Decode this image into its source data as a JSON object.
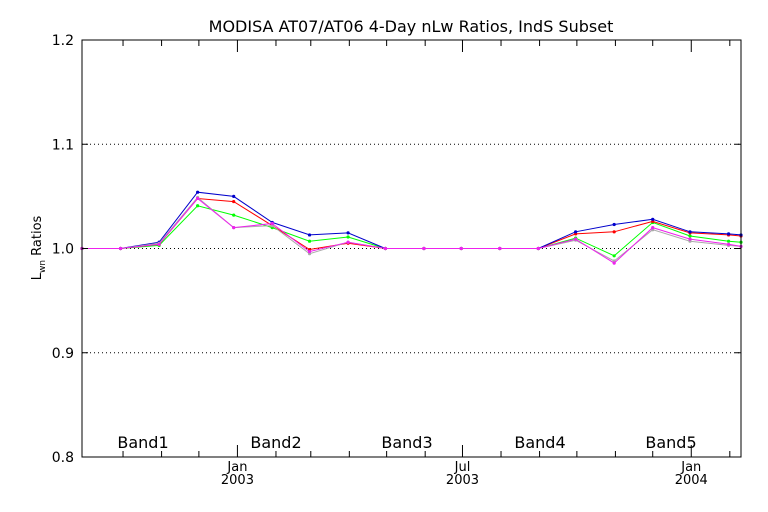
{
  "chart_data": {
    "type": "line",
    "title": "MODISA AT07/AT06 4-Day nLw Ratios, IndS Subset",
    "ylabel_main": "L",
    "ylabel_sub": "wn",
    "ylabel_rest": " Ratios",
    "xlabel": "",
    "ylim": [
      0.8,
      1.2
    ],
    "yticks": [
      {
        "v": 0.8,
        "label": "0.8"
      },
      {
        "v": 0.9,
        "label": "0.9"
      },
      {
        "v": 1.0,
        "label": "1.0"
      },
      {
        "v": 1.1,
        "label": "1.1"
      },
      {
        "v": 1.2,
        "label": "1.2"
      }
    ],
    "grid_y": [
      0.9,
      1.0,
      1.1
    ],
    "x_range": [
      "2002-08-29",
      "2004-02-10"
    ],
    "xticks_major": [
      {
        "date": "2003-01-01",
        "month": "Jan",
        "year": "2003"
      },
      {
        "date": "2003-07-01",
        "month": "Jul",
        "year": "2003"
      },
      {
        "date": "2004-01-01",
        "month": "Jan",
        "year": "2004"
      }
    ],
    "xticks_minor": [
      "2002-10-01",
      "2002-11-01",
      "2002-12-01",
      "2003-02-01",
      "2003-03-01",
      "2003-04-01",
      "2003-05-01",
      "2003-06-01",
      "2003-08-01",
      "2003-09-01",
      "2003-10-01",
      "2003-11-01",
      "2003-12-01",
      "2004-02-01"
    ],
    "x": [
      "2002-08-29",
      "2002-09-29",
      "2002-10-30",
      "2002-11-30",
      "2002-12-29",
      "2003-01-29",
      "2003-02-28",
      "2003-03-31",
      "2003-04-30",
      "2003-05-31",
      "2003-06-30",
      "2003-07-31",
      "2003-08-31",
      "2003-09-30",
      "2003-10-31",
      "2003-12-01",
      "2003-12-31",
      "2004-01-31",
      "2004-02-10"
    ],
    "series": [
      {
        "name": "Band1",
        "color": "#00ff00",
        "values": [
          1.0,
          1.0,
          1.003,
          1.041,
          1.032,
          1.02,
          1.007,
          1.011,
          1.0,
          1.0,
          1.0,
          1.0,
          1.0,
          1.01,
          0.993,
          1.025,
          1.012,
          1.007,
          1.006
        ]
      },
      {
        "name": "Band2",
        "color": "#ff0000",
        "values": [
          1.0,
          1.0,
          1.004,
          1.048,
          1.045,
          1.022,
          0.999,
          1.005,
          1.0,
          1.0,
          1.0,
          1.0,
          1.0,
          1.014,
          1.016,
          1.026,
          1.015,
          1.013,
          1.012
        ]
      },
      {
        "name": "Band3",
        "color": "#0000cc",
        "values": [
          1.0,
          1.0,
          1.006,
          1.054,
          1.05,
          1.025,
          1.013,
          1.015,
          1.0,
          1.0,
          1.0,
          1.0,
          1.0,
          1.016,
          1.023,
          1.028,
          1.016,
          1.014,
          1.013
        ]
      },
      {
        "name": "Band4",
        "color": "#aaaaaa",
        "values": [
          1.0,
          1.0,
          1.005,
          1.049,
          1.02,
          1.022,
          0.995,
          1.006,
          1.0,
          1.0,
          1.0,
          1.0,
          1.0,
          1.008,
          0.988,
          1.018,
          1.007,
          1.003,
          1.002
        ]
      },
      {
        "name": "Band5",
        "color": "#ee22ee",
        "values": [
          1.0,
          1.0,
          1.004,
          1.048,
          1.02,
          1.024,
          0.997,
          1.006,
          1.0,
          1.0,
          1.0,
          1.0,
          1.0,
          1.009,
          0.986,
          1.02,
          1.009,
          1.004,
          1.002
        ]
      }
    ],
    "grid": true,
    "legend_position": "bottom-inside"
  }
}
